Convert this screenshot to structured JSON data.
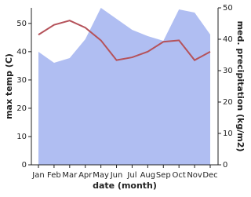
{
  "chart_data": {
    "type": "line-area",
    "x_label": "date (month)",
    "y_label": "max temp (C)",
    "y2_label": "med. precipitation (kg/m2)",
    "categories": [
      "Jan",
      "Feb",
      "Mar",
      "Apr",
      "May",
      "Jun",
      "Jul",
      "Aug",
      "Sep",
      "Oct",
      "Nov",
      "Dec"
    ],
    "series": [
      {
        "name": "max temp",
        "color": "#b5525a",
        "kind": "line",
        "axis": "y",
        "values": [
          46,
          49.5,
          51,
          48.5,
          44,
          37,
          38,
          40,
          43.5,
          44,
          37,
          40
        ]
      },
      {
        "name": "precipitation",
        "color": "#b0bef2",
        "kind": "area",
        "axis": "y2",
        "values": [
          36,
          32.5,
          34,
          40,
          50,
          46.5,
          43,
          41,
          39.5,
          49.5,
          48.5,
          41.5
        ]
      }
    ],
    "ylim": [
      0,
      55.5
    ],
    "yticks": [
      0,
      10,
      20,
      30,
      40,
      50
    ],
    "y2lim": [
      0,
      50
    ],
    "y2ticks": [
      0,
      10,
      20,
      30,
      40,
      50
    ]
  }
}
